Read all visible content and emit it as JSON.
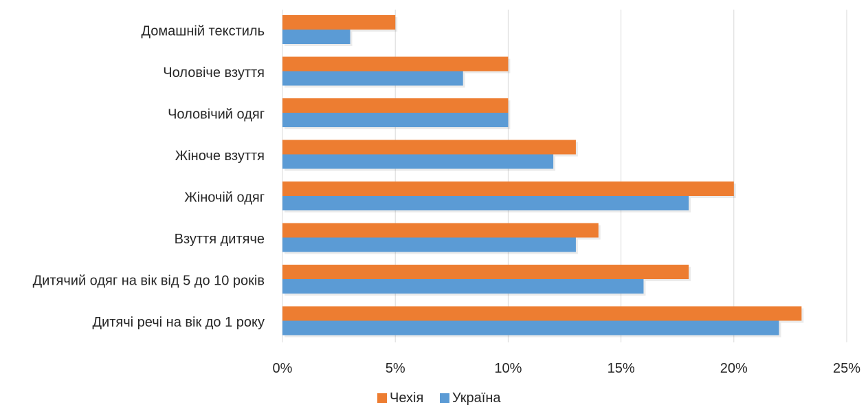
{
  "chart_data": {
    "type": "bar",
    "orientation": "horizontal",
    "title": "",
    "xlabel": "",
    "ylabel": "",
    "categories": [
      "Домашній текстиль",
      "Чоловіче взуття",
      "Чоловічий одяг",
      "Жіноче взуття",
      "Жіночій одяг",
      "Взуття дитяче",
      "Дитячий одяг на вік від 5 до 10 років",
      "Дитячі речі на вік до 1 року"
    ],
    "series": [
      {
        "name": "Чехія",
        "color": "#ED7D31",
        "values": [
          5,
          10,
          10,
          13,
          20,
          14,
          18,
          23
        ]
      },
      {
        "name": "Україна",
        "color": "#5B9BD5",
        "values": [
          3,
          8,
          10,
          12,
          18,
          13,
          16,
          22
        ]
      }
    ],
    "xlim": [
      0,
      25
    ],
    "x_ticks": [
      "0%",
      "5%",
      "10%",
      "15%",
      "20%",
      "25%"
    ],
    "grid": "vertical",
    "legend": "bottom-center"
  }
}
